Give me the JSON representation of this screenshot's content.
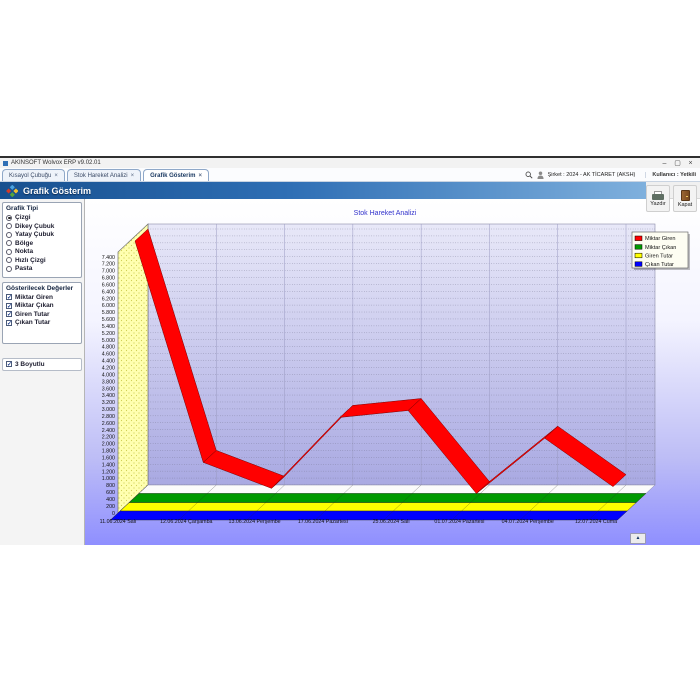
{
  "glyphs": {
    "minimize": "–",
    "maximize": "▢",
    "close": "×",
    "tab_close": "×",
    "check": "✓",
    "up_arrow": "▲"
  },
  "window": {
    "title": "AKINSOFT Wolvox ERP v9.02.01"
  },
  "tabs": [
    {
      "label": "Kısayol Çubuğu"
    },
    {
      "label": "Stok Hareket Analizi"
    },
    {
      "label": "Grafik Gösterim"
    }
  ],
  "topbar": {
    "company": "Şirket : 2024 - AK TİCARET (AKSH)",
    "user": "Kullanıcı : Yetkili"
  },
  "header": {
    "title": "Grafik Gösterim"
  },
  "toolbar": {
    "print_label": "Yazdır",
    "close_label": "Kapat"
  },
  "sidebar": {
    "chart_type_group": {
      "title": "Grafik Tipi",
      "options": [
        {
          "label": "Çizgi",
          "selected": true
        },
        {
          "label": "Dikey Çubuk",
          "selected": false
        },
        {
          "label": "Yatay Çubuk",
          "selected": false
        },
        {
          "label": "Bölge",
          "selected": false
        },
        {
          "label": "Nokta",
          "selected": false
        },
        {
          "label": "Hızlı Çizgi",
          "selected": false
        },
        {
          "label": "Pasta",
          "selected": false
        }
      ]
    },
    "values_group": {
      "title": "Gösterilecek Değerler",
      "options": [
        {
          "label": "Miktar Giren",
          "checked": true
        },
        {
          "label": "Miktar Çıkan",
          "checked": true
        },
        {
          "label": "Giren Tutar",
          "checked": true
        },
        {
          "label": "Çıkan Tutar",
          "checked": true
        }
      ]
    },
    "three_d": {
      "label": "3 Boyutlu",
      "checked": true
    }
  },
  "chart_data": {
    "type": "line",
    "three_d": true,
    "title": "Stok Hareket Analizi",
    "title_color": "#3333cc",
    "categories": [
      "11.06.2024 Salı",
      "12.06.2024 Çarşamba",
      "13.06.2024 Perşembe",
      "17.06.2024 Pazartesi",
      "25.06.2024 Salı",
      "01.07.2024 Pazartesi",
      "04.07.2024 Perşembe",
      "12.07.2024 Cuma"
    ],
    "series": [
      {
        "name": "Miktar Giren",
        "color": "#ff0000",
        "values": [
          7400,
          1000,
          250,
          2300,
          2500,
          100,
          1700,
          300
        ]
      },
      {
        "name": "Miktar Çıkan",
        "color": "#009900",
        "values": [
          0,
          0,
          0,
          0,
          0,
          0,
          0,
          0
        ]
      },
      {
        "name": "Giren Tutar",
        "color": "#ffff00",
        "values": [
          0,
          0,
          0,
          0,
          0,
          0,
          0,
          0
        ]
      },
      {
        "name": "Çıkan Tutar",
        "color": "#0000ff",
        "values": [
          0,
          0,
          0,
          0,
          0,
          0,
          0,
          0
        ]
      }
    ],
    "ylim": [
      0,
      7400
    ],
    "ytick_step": 200,
    "grid": true,
    "legend_position": "top-right",
    "wall_color": "#ffffb0",
    "back_wall_top": "#e8e8f8",
    "back_wall_bottom": "#a9a9e2"
  }
}
